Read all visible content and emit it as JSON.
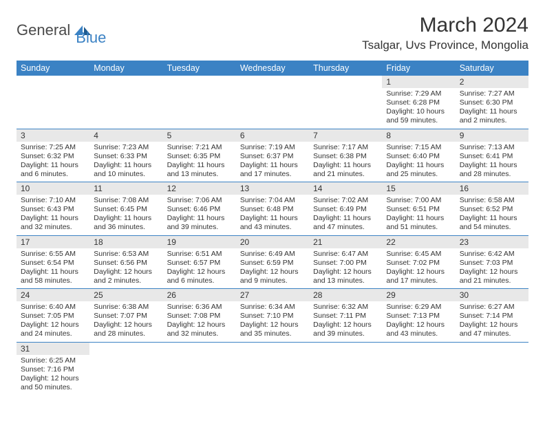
{
  "logo": {
    "part1": "General",
    "part2": "Blue"
  },
  "title": "March 2024",
  "location": "Tsalgar, Uvs Province, Mongolia",
  "colors": {
    "header_bg": "#3b82c4",
    "daynum_bg": "#e8e8e8",
    "row_border": "#3b82c4"
  },
  "day_headers": [
    "Sunday",
    "Monday",
    "Tuesday",
    "Wednesday",
    "Thursday",
    "Friday",
    "Saturday"
  ],
  "weeks": [
    [
      {
        "empty": true
      },
      {
        "empty": true
      },
      {
        "empty": true
      },
      {
        "empty": true
      },
      {
        "empty": true
      },
      {
        "day": "1",
        "sunrise": "Sunrise: 7:29 AM",
        "sunset": "Sunset: 6:28 PM",
        "daylight": "Daylight: 10 hours and 59 minutes."
      },
      {
        "day": "2",
        "sunrise": "Sunrise: 7:27 AM",
        "sunset": "Sunset: 6:30 PM",
        "daylight": "Daylight: 11 hours and 2 minutes."
      }
    ],
    [
      {
        "day": "3",
        "sunrise": "Sunrise: 7:25 AM",
        "sunset": "Sunset: 6:32 PM",
        "daylight": "Daylight: 11 hours and 6 minutes."
      },
      {
        "day": "4",
        "sunrise": "Sunrise: 7:23 AM",
        "sunset": "Sunset: 6:33 PM",
        "daylight": "Daylight: 11 hours and 10 minutes."
      },
      {
        "day": "5",
        "sunrise": "Sunrise: 7:21 AM",
        "sunset": "Sunset: 6:35 PM",
        "daylight": "Daylight: 11 hours and 13 minutes."
      },
      {
        "day": "6",
        "sunrise": "Sunrise: 7:19 AM",
        "sunset": "Sunset: 6:37 PM",
        "daylight": "Daylight: 11 hours and 17 minutes."
      },
      {
        "day": "7",
        "sunrise": "Sunrise: 7:17 AM",
        "sunset": "Sunset: 6:38 PM",
        "daylight": "Daylight: 11 hours and 21 minutes."
      },
      {
        "day": "8",
        "sunrise": "Sunrise: 7:15 AM",
        "sunset": "Sunset: 6:40 PM",
        "daylight": "Daylight: 11 hours and 25 minutes."
      },
      {
        "day": "9",
        "sunrise": "Sunrise: 7:13 AM",
        "sunset": "Sunset: 6:41 PM",
        "daylight": "Daylight: 11 hours and 28 minutes."
      }
    ],
    [
      {
        "day": "10",
        "sunrise": "Sunrise: 7:10 AM",
        "sunset": "Sunset: 6:43 PM",
        "daylight": "Daylight: 11 hours and 32 minutes."
      },
      {
        "day": "11",
        "sunrise": "Sunrise: 7:08 AM",
        "sunset": "Sunset: 6:45 PM",
        "daylight": "Daylight: 11 hours and 36 minutes."
      },
      {
        "day": "12",
        "sunrise": "Sunrise: 7:06 AM",
        "sunset": "Sunset: 6:46 PM",
        "daylight": "Daylight: 11 hours and 39 minutes."
      },
      {
        "day": "13",
        "sunrise": "Sunrise: 7:04 AM",
        "sunset": "Sunset: 6:48 PM",
        "daylight": "Daylight: 11 hours and 43 minutes."
      },
      {
        "day": "14",
        "sunrise": "Sunrise: 7:02 AM",
        "sunset": "Sunset: 6:49 PM",
        "daylight": "Daylight: 11 hours and 47 minutes."
      },
      {
        "day": "15",
        "sunrise": "Sunrise: 7:00 AM",
        "sunset": "Sunset: 6:51 PM",
        "daylight": "Daylight: 11 hours and 51 minutes."
      },
      {
        "day": "16",
        "sunrise": "Sunrise: 6:58 AM",
        "sunset": "Sunset: 6:52 PM",
        "daylight": "Daylight: 11 hours and 54 minutes."
      }
    ],
    [
      {
        "day": "17",
        "sunrise": "Sunrise: 6:55 AM",
        "sunset": "Sunset: 6:54 PM",
        "daylight": "Daylight: 11 hours and 58 minutes."
      },
      {
        "day": "18",
        "sunrise": "Sunrise: 6:53 AM",
        "sunset": "Sunset: 6:56 PM",
        "daylight": "Daylight: 12 hours and 2 minutes."
      },
      {
        "day": "19",
        "sunrise": "Sunrise: 6:51 AM",
        "sunset": "Sunset: 6:57 PM",
        "daylight": "Daylight: 12 hours and 6 minutes."
      },
      {
        "day": "20",
        "sunrise": "Sunrise: 6:49 AM",
        "sunset": "Sunset: 6:59 PM",
        "daylight": "Daylight: 12 hours and 9 minutes."
      },
      {
        "day": "21",
        "sunrise": "Sunrise: 6:47 AM",
        "sunset": "Sunset: 7:00 PM",
        "daylight": "Daylight: 12 hours and 13 minutes."
      },
      {
        "day": "22",
        "sunrise": "Sunrise: 6:45 AM",
        "sunset": "Sunset: 7:02 PM",
        "daylight": "Daylight: 12 hours and 17 minutes."
      },
      {
        "day": "23",
        "sunrise": "Sunrise: 6:42 AM",
        "sunset": "Sunset: 7:03 PM",
        "daylight": "Daylight: 12 hours and 21 minutes."
      }
    ],
    [
      {
        "day": "24",
        "sunrise": "Sunrise: 6:40 AM",
        "sunset": "Sunset: 7:05 PM",
        "daylight": "Daylight: 12 hours and 24 minutes."
      },
      {
        "day": "25",
        "sunrise": "Sunrise: 6:38 AM",
        "sunset": "Sunset: 7:07 PM",
        "daylight": "Daylight: 12 hours and 28 minutes."
      },
      {
        "day": "26",
        "sunrise": "Sunrise: 6:36 AM",
        "sunset": "Sunset: 7:08 PM",
        "daylight": "Daylight: 12 hours and 32 minutes."
      },
      {
        "day": "27",
        "sunrise": "Sunrise: 6:34 AM",
        "sunset": "Sunset: 7:10 PM",
        "daylight": "Daylight: 12 hours and 35 minutes."
      },
      {
        "day": "28",
        "sunrise": "Sunrise: 6:32 AM",
        "sunset": "Sunset: 7:11 PM",
        "daylight": "Daylight: 12 hours and 39 minutes."
      },
      {
        "day": "29",
        "sunrise": "Sunrise: 6:29 AM",
        "sunset": "Sunset: 7:13 PM",
        "daylight": "Daylight: 12 hours and 43 minutes."
      },
      {
        "day": "30",
        "sunrise": "Sunrise: 6:27 AM",
        "sunset": "Sunset: 7:14 PM",
        "daylight": "Daylight: 12 hours and 47 minutes."
      }
    ],
    [
      {
        "day": "31",
        "sunrise": "Sunrise: 6:25 AM",
        "sunset": "Sunset: 7:16 PM",
        "daylight": "Daylight: 12 hours and 50 minutes."
      },
      {
        "empty": true
      },
      {
        "empty": true
      },
      {
        "empty": true
      },
      {
        "empty": true
      },
      {
        "empty": true
      },
      {
        "empty": true
      }
    ]
  ]
}
